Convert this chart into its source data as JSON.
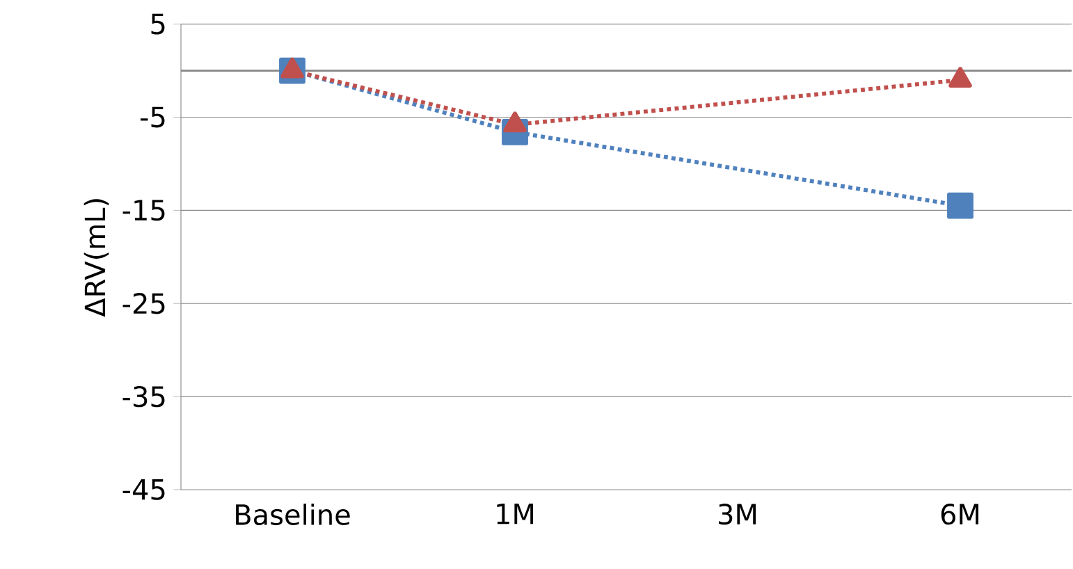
{
  "chart_data": {
    "type": "line",
    "ylabel": "ΔRV(mL)",
    "categories": [
      "Baseline",
      "1M",
      "3M",
      "6M"
    ],
    "series": [
      {
        "color": "#4f81bd",
        "marker": "square",
        "values": [
          0,
          -6.6,
          null,
          -14.5
        ]
      },
      {
        "color": "#c0504d",
        "marker": "triangle",
        "values": [
          0,
          -5.8,
          null,
          -1
        ]
      }
    ],
    "ylim": [
      -45,
      5
    ],
    "yticks": [
      -45,
      -35,
      -25,
      -15,
      -5,
      5
    ],
    "grid": "y",
    "line_style": "dotted",
    "ref_lines": [
      {
        "axis": "y",
        "value": 0,
        "color": "#868686"
      }
    ]
  }
}
